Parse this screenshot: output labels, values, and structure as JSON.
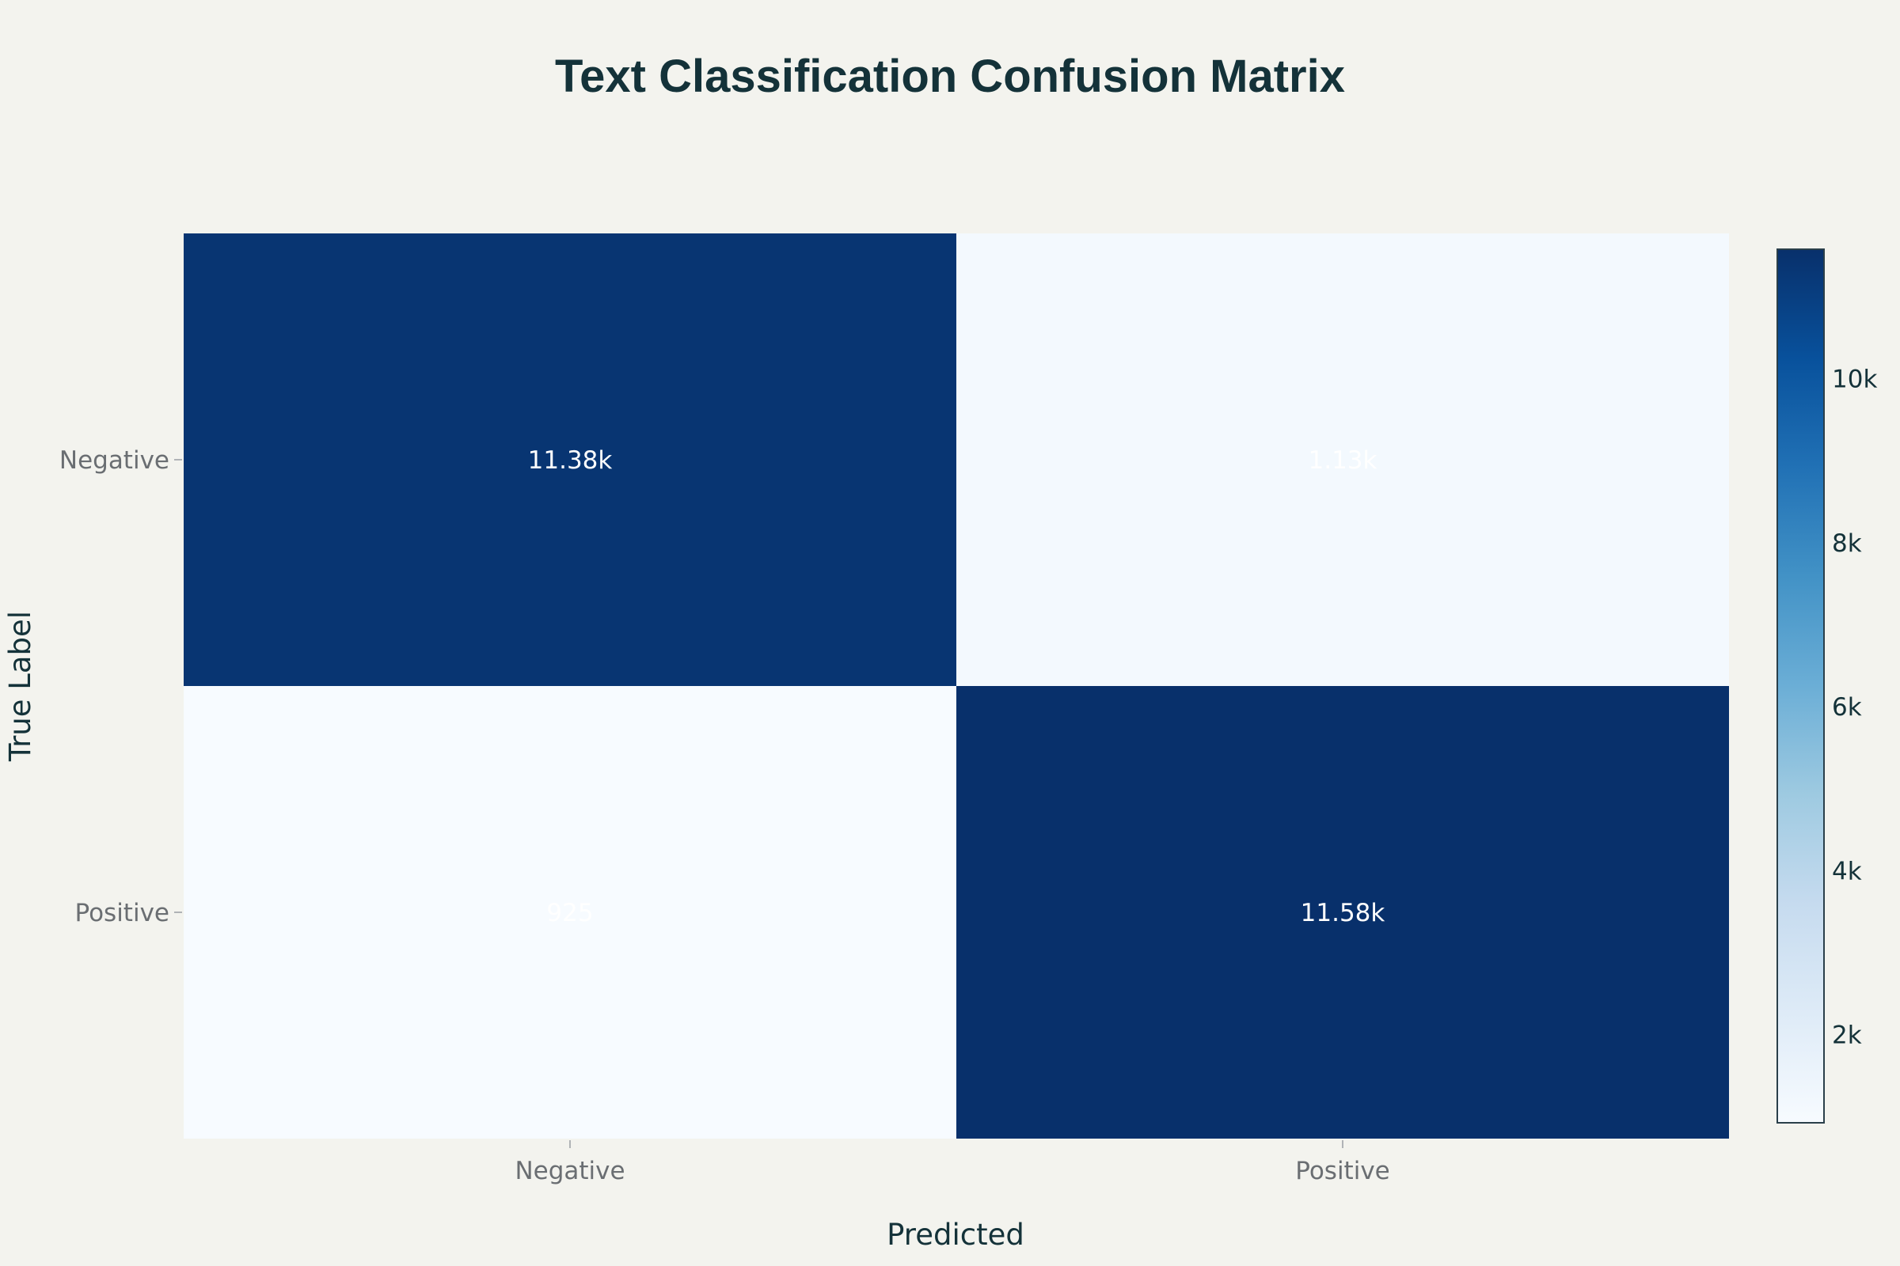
{
  "chart_data": {
    "type": "heatmap",
    "title": "Text Classification Confusion Matrix",
    "xlabel": "Predicted",
    "ylabel": "True Label",
    "x_categories": [
      "Negative",
      "Positive"
    ],
    "y_categories": [
      "Negative",
      "Positive"
    ],
    "z": [
      [
        11380,
        1130
      ],
      [
        925,
        11580
      ]
    ],
    "cell_labels": [
      [
        "11.38k",
        "1.13k"
      ],
      [
        "925",
        "11.58k"
      ]
    ],
    "colorscale": "Blues",
    "colorbar": {
      "range": [
        925,
        11580
      ],
      "ticks": [
        2000,
        4000,
        6000,
        8000,
        10000
      ],
      "tick_labels": [
        "2k",
        "4k",
        "6k",
        "8k",
        "10k"
      ]
    },
    "colors": {
      "background": "#f3f3ee",
      "low": "#f7fbff",
      "high": "#08306b",
      "text": "#143239"
    }
  }
}
